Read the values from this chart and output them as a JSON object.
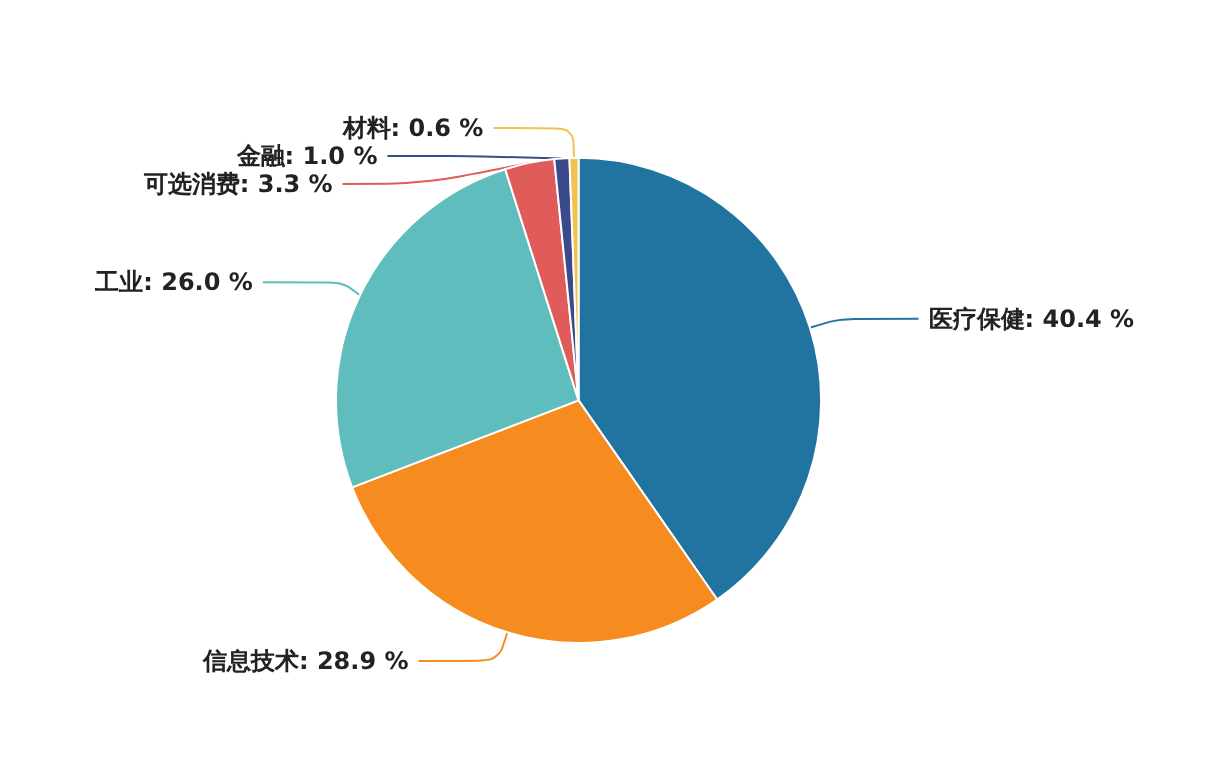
{
  "chart_data": {
    "type": "pie",
    "categories": [
      "医疗保健",
      "信息技术",
      "工业",
      "可选消费",
      "金融",
      "材料"
    ],
    "values": [
      40.4,
      28.9,
      26.0,
      3.3,
      1.0,
      0.6
    ],
    "value_labels": [
      "40.4 %",
      "28.9 %",
      "26.0 %",
      "3.3 %",
      "1.0 %",
      "0.6 %"
    ],
    "colors": [
      "#2274a0",
      "#f68b1f",
      "#5fbdbd",
      "#e05c5a",
      "#3a4a8c",
      "#f2c14e"
    ],
    "legend": false
  }
}
